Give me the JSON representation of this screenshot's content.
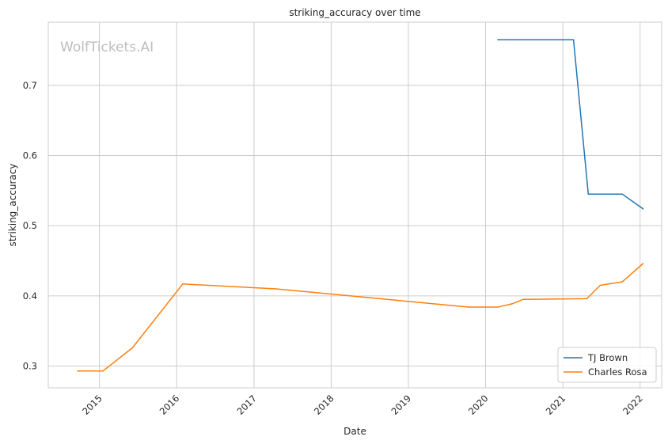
{
  "watermark": "WolfTickets.AI",
  "chart_data": {
    "type": "line",
    "title": "striking_accuracy over time",
    "xlabel": "Date",
    "ylabel": "striking_accuracy",
    "x_ticks": [
      "2015",
      "2016",
      "2017",
      "2018",
      "2019",
      "2020",
      "2021",
      "2022"
    ],
    "y_ticks": [
      "0.3",
      "0.4",
      "0.5",
      "0.6",
      "0.7"
    ],
    "xlim": [
      "2014-05-04",
      "2022-04-13"
    ],
    "ylim": [
      0.269,
      0.79
    ],
    "grid": true,
    "legend_position": "lower-right",
    "series": [
      {
        "name": "TJ Brown",
        "color": "#1f77b4",
        "points": [
          [
            "2020-02-28",
            0.765
          ],
          [
            "2021-02-20",
            0.765
          ],
          [
            "2021-05-01",
            0.545
          ],
          [
            "2021-10-09",
            0.545
          ],
          [
            "2022-01-15",
            0.524
          ]
        ]
      },
      {
        "name": "Charles Rosa",
        "color": "#ff7f0e",
        "points": [
          [
            "2014-09-20",
            0.293
          ],
          [
            "2015-01-18",
            0.293
          ],
          [
            "2015-06-06",
            0.326
          ],
          [
            "2016-01-30",
            0.417
          ],
          [
            "2017-04-15",
            0.41
          ],
          [
            "2019-10-12",
            0.384
          ],
          [
            "2020-02-29",
            0.384
          ],
          [
            "2020-05-09",
            0.389
          ],
          [
            "2020-06-27",
            0.395
          ],
          [
            "2021-04-24",
            0.396
          ],
          [
            "2021-06-26",
            0.415
          ],
          [
            "2021-10-09",
            0.42
          ],
          [
            "2022-01-15",
            0.446
          ]
        ]
      }
    ]
  }
}
